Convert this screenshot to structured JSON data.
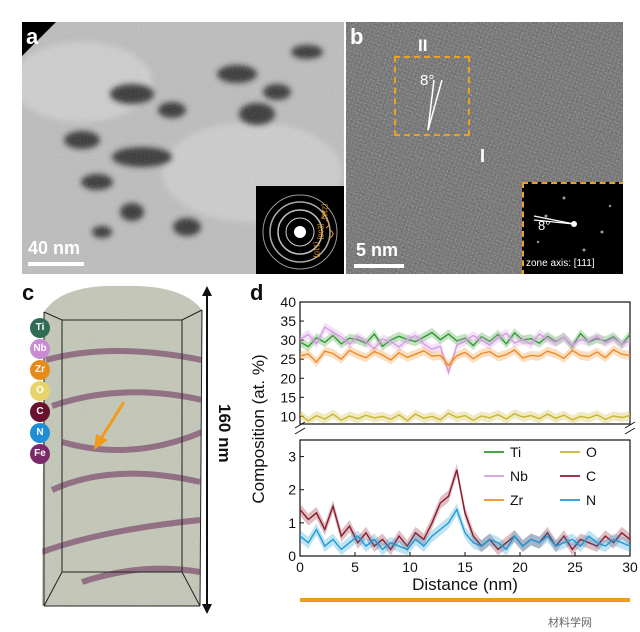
{
  "panel_a": {
    "label": "a",
    "scale_bar": "40 nm",
    "saed_labels": [
      "{211}",
      "{200}",
      "{110}"
    ]
  },
  "panel_b": {
    "label": "b",
    "region_ii": "II",
    "region_i": "I",
    "angle": "8°",
    "inset_angle": "8°",
    "zone_axis": "zone axis: [111]",
    "scale_bar": "5 nm"
  },
  "panel_c": {
    "label": "c",
    "height_label": "160 nm",
    "elements": [
      {
        "symbol": "Ti",
        "color": "#2f6b55"
      },
      {
        "symbol": "Nb",
        "color": "#c98ad6"
      },
      {
        "symbol": "Zr",
        "color": "#e68a1a"
      },
      {
        "symbol": "O",
        "color": "#e6d36a"
      },
      {
        "symbol": "C",
        "color": "#6b1030"
      },
      {
        "symbol": "N",
        "color": "#1e8fd6"
      },
      {
        "symbol": "Fe",
        "color": "#7a2a6a"
      }
    ]
  },
  "panel_d": {
    "label": "d",
    "watermark": "材料学网",
    "chart_data": {
      "type": "line",
      "xlabel": "Distance (nm)",
      "ylabel": "Composition (at. %)",
      "xlim": [
        0,
        30
      ],
      "x_ticks": [
        0,
        5,
        10,
        15,
        20,
        25,
        30
      ],
      "upper_ylim": [
        8,
        40
      ],
      "upper_ticks": [
        10,
        15,
        20,
        25,
        30,
        35,
        40
      ],
      "lower_ylim": [
        0,
        3.5
      ],
      "lower_ticks": [
        0,
        1,
        2,
        3
      ],
      "legend": [
        "Ti",
        "O",
        "Nb",
        "C",
        "Zr",
        "N"
      ],
      "x": [
        0,
        0.75,
        1.5,
        2.25,
        3,
        3.75,
        4.5,
        5.25,
        6,
        6.75,
        7.5,
        8.25,
        9,
        9.75,
        10.5,
        11.25,
        12,
        12.75,
        13.5,
        14.25,
        15,
        15.75,
        16.5,
        17.25,
        18,
        18.75,
        19.5,
        20.25,
        21,
        21.75,
        22.5,
        23.25,
        24,
        24.75,
        25.5,
        26.25,
        27,
        27.75,
        28.5,
        29.25,
        30
      ],
      "series": [
        {
          "name": "Ti",
          "color": "#2e9a2e",
          "panel": "upper",
          "values": [
            29.5,
            28.3,
            30.6,
            29.4,
            31.2,
            29.0,
            30.5,
            30.1,
            29.2,
            31.6,
            28.4,
            30.0,
            31.0,
            30.2,
            29.6,
            30.8,
            32.0,
            30.1,
            31.6,
            29.8,
            30.5,
            28.6,
            30.9,
            29.7,
            31.5,
            29.0,
            31.9,
            30.0,
            30.4,
            29.2,
            31.0,
            29.6,
            30.8,
            28.4,
            31.7,
            29.5,
            30.4,
            29.8,
            30.9,
            28.8,
            31.5
          ]
        },
        {
          "name": "Nb",
          "color": "#d79be6",
          "panel": "upper",
          "values": [
            30.2,
            31.5,
            29.0,
            33.4,
            32.1,
            30.8,
            28.9,
            31.0,
            29.5,
            27.8,
            30.3,
            29.6,
            28.2,
            30.1,
            31.2,
            29.0,
            27.6,
            28.4,
            21.5,
            28.6,
            29.8,
            31.2,
            30.0,
            28.7,
            30.5,
            31.8,
            29.2,
            30.1,
            28.9,
            31.6,
            30.2,
            29.4,
            30.8,
            28.6,
            30.1,
            29.7,
            31.0,
            29.3,
            30.4,
            28.9,
            29.8
          ]
        },
        {
          "name": "Zr",
          "color": "#ef8c25",
          "panel": "upper",
          "values": [
            25.8,
            26.4,
            24.2,
            27.1,
            26.5,
            25.0,
            27.3,
            26.2,
            25.4,
            27.0,
            26.1,
            24.8,
            26.7,
            25.5,
            26.3,
            27.2,
            25.8,
            26.0,
            23.4,
            25.9,
            26.8,
            25.1,
            26.5,
            27.0,
            25.6,
            26.2,
            27.4,
            25.3,
            26.0,
            25.8,
            27.1,
            26.4,
            25.2,
            27.3,
            26.0,
            25.7,
            26.9,
            25.4,
            27.5,
            26.3,
            26.0
          ]
        },
        {
          "name": "O",
          "color": "#c9b52c",
          "panel": "upper",
          "values": [
            10.5,
            8.8,
            10.2,
            9.3,
            10.6,
            9.0,
            10.1,
            9.4,
            10.3,
            9.6,
            10.0,
            9.2,
            10.4,
            8.9,
            10.6,
            9.5,
            10.0,
            9.1,
            10.8,
            9.7,
            10.2,
            9.0,
            10.1,
            9.6,
            10.5,
            9.3,
            10.7,
            9.8,
            10.2,
            9.4,
            10.6,
            9.5,
            10.3,
            9.1,
            10.0,
            9.6,
            10.4,
            9.2,
            10.1,
            9.7,
            10.2
          ]
        },
        {
          "name": "C",
          "color": "#8b1a2c",
          "panel": "lower",
          "values": [
            1.4,
            1.1,
            1.3,
            0.8,
            1.5,
            0.6,
            0.9,
            0.4,
            0.7,
            0.3,
            0.5,
            0.2,
            0.6,
            0.3,
            0.7,
            0.5,
            1.0,
            1.6,
            1.8,
            2.6,
            1.3,
            0.6,
            0.3,
            0.5,
            0.2,
            0.4,
            0.6,
            0.3,
            0.5,
            0.4,
            0.7,
            0.3,
            0.6,
            0.2,
            0.5,
            0.4,
            0.3,
            0.6,
            0.4,
            0.7,
            0.5
          ]
        },
        {
          "name": "N",
          "color": "#1e9ad6",
          "panel": "lower",
          "values": [
            0.6,
            0.4,
            0.8,
            0.3,
            0.5,
            0.2,
            0.4,
            0.6,
            0.3,
            0.5,
            0.2,
            0.4,
            0.3,
            0.2,
            0.5,
            0.3,
            0.6,
            0.8,
            1.0,
            1.4,
            0.7,
            0.4,
            0.3,
            0.5,
            0.4,
            0.2,
            0.6,
            0.3,
            0.5,
            0.4,
            0.6,
            0.3,
            0.4,
            0.5,
            0.3,
            0.6,
            0.4,
            0.3,
            0.5,
            0.4,
            0.3
          ]
        }
      ]
    }
  }
}
